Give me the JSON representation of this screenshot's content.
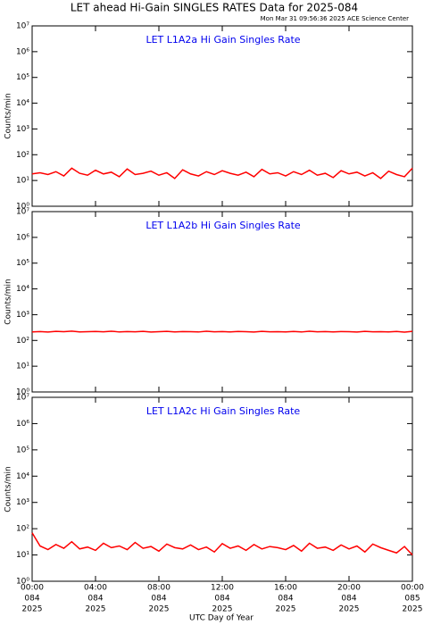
{
  "title": "LET ahead Hi-Gain SINGLES RATES Data for 2025-084",
  "subtitle": "Mon Mar 31 09:56:36 2025 ACE Science Center",
  "xlabel": "UTC Day of Year",
  "chart_data": [
    {
      "type": "line",
      "title": "LET L1A2a Hi Gain Singles Rate",
      "ylabel": "Counts/min",
      "log_y": true,
      "color": "#ff0000",
      "x": [
        0,
        0.5,
        1,
        1.5,
        2,
        2.5,
        3,
        3.5,
        4,
        4.5,
        5,
        5.5,
        6,
        6.5,
        7,
        7.5,
        8,
        8.5,
        9,
        9.5,
        10,
        10.5,
        11,
        11.5,
        12,
        12.5,
        13,
        13.5,
        14,
        14.5,
        15,
        15.5,
        16,
        16.5,
        17,
        17.5,
        18,
        18.5,
        19,
        19.5,
        20,
        20.5,
        21,
        21.5,
        22,
        22.5,
        23,
        23.5,
        24
      ],
      "values": [
        18,
        20,
        17,
        22,
        15,
        30,
        19,
        16,
        25,
        18,
        21,
        14,
        28,
        17,
        19,
        23,
        16,
        20,
        12,
        26,
        18,
        15,
        22,
        17,
        24,
        19,
        16,
        21,
        14,
        27,
        18,
        20,
        15,
        22,
        17,
        25,
        16,
        19,
        13,
        24,
        18,
        21,
        15,
        20,
        12,
        23,
        17,
        14,
        30
      ],
      "xlim": [
        0,
        24
      ],
      "xticks": [
        0,
        4,
        8,
        12,
        16,
        20,
        24
      ],
      "ylim": [
        1,
        10000000
      ],
      "yticks": [
        {
          "value": 1,
          "label": "10⁰"
        },
        {
          "value": 10,
          "label": "10¹"
        },
        {
          "value": 100,
          "label": "10²"
        },
        {
          "value": 1000,
          "label": "10³"
        },
        {
          "value": 10000,
          "label": "10⁴"
        },
        {
          "value": 100000,
          "label": "10⁵"
        },
        {
          "value": 1000000,
          "label": "10⁶"
        },
        {
          "value": 10000000,
          "label": "10⁷"
        }
      ]
    },
    {
      "type": "line",
      "title": "LET L1A2b Hi Gain Singles Rate",
      "ylabel": "Counts/min",
      "log_y": true,
      "color": "#ff0000",
      "x": [
        0,
        0.5,
        1,
        1.5,
        2,
        2.5,
        3,
        3.5,
        4,
        4.5,
        5,
        5.5,
        6,
        6.5,
        7,
        7.5,
        8,
        8.5,
        9,
        9.5,
        10,
        10.5,
        11,
        11.5,
        12,
        12.5,
        13,
        13.5,
        14,
        14.5,
        15,
        15.5,
        16,
        16.5,
        17,
        17.5,
        18,
        18.5,
        19,
        19.5,
        20,
        20.5,
        21,
        21.5,
        22,
        22.5,
        23,
        23.5,
        24
      ],
      "values": [
        215,
        220,
        212,
        225,
        218,
        230,
        214,
        219,
        222,
        216,
        228,
        213,
        220,
        217,
        224,
        212,
        219,
        226,
        215,
        221,
        218,
        213,
        227,
        216,
        220,
        214,
        223,
        218,
        211,
        225,
        217,
        219,
        215,
        222,
        213,
        228,
        216,
        220,
        214,
        221,
        218,
        212,
        224,
        217,
        219,
        215,
        222,
        210,
        225
      ],
      "xlim": [
        0,
        24
      ],
      "xticks": [
        0,
        4,
        8,
        12,
        16,
        20,
        24
      ],
      "ylim": [
        1,
        10000000
      ],
      "yticks": [
        {
          "value": 1,
          "label": "10⁰"
        },
        {
          "value": 10,
          "label": "10¹"
        },
        {
          "value": 100,
          "label": "10²"
        },
        {
          "value": 1000,
          "label": "10³"
        },
        {
          "value": 10000,
          "label": "10⁴"
        },
        {
          "value": 100000,
          "label": "10⁵"
        },
        {
          "value": 1000000,
          "label": "10⁶"
        },
        {
          "value": 10000000,
          "label": "10⁷"
        }
      ]
    },
    {
      "type": "line",
      "title": "LET L1A2c Hi Gain Singles Rate",
      "ylabel": "Counts/min",
      "log_y": true,
      "color": "#ff0000",
      "x": [
        0,
        0.5,
        1,
        1.5,
        2,
        2.5,
        3,
        3.5,
        4,
        4.5,
        5,
        5.5,
        6,
        6.5,
        7,
        7.5,
        8,
        8.5,
        9,
        9.5,
        10,
        10.5,
        11,
        11.5,
        12,
        12.5,
        13,
        13.5,
        14,
        14.5,
        15,
        15.5,
        16,
        16.5,
        17,
        17.5,
        18,
        18.5,
        19,
        19.5,
        20,
        20.5,
        21,
        21.5,
        22,
        22.5,
        23,
        23.5,
        24
      ],
      "values": [
        70,
        22,
        16,
        25,
        18,
        32,
        17,
        20,
        15,
        28,
        19,
        22,
        16,
        30,
        18,
        21,
        14,
        26,
        19,
        17,
        24,
        16,
        20,
        13,
        27,
        18,
        22,
        15,
        25,
        17,
        21,
        19,
        16,
        23,
        14,
        28,
        18,
        20,
        15,
        24,
        17,
        22,
        13,
        26,
        19,
        15,
        12,
        21,
        10
      ],
      "xlim": [
        0,
        24
      ],
      "xticks": [
        {
          "value": 0,
          "label": [
            "00:00",
            "084",
            "2025"
          ]
        },
        {
          "value": 4,
          "label": [
            "04:00",
            "084",
            "2025"
          ]
        },
        {
          "value": 8,
          "label": [
            "08:00",
            "084",
            "2025"
          ]
        },
        {
          "value": 12,
          "label": [
            "12:00",
            "084",
            "2025"
          ]
        },
        {
          "value": 16,
          "label": [
            "16:00",
            "084",
            "2025"
          ]
        },
        {
          "value": 20,
          "label": [
            "20:00",
            "084",
            "2025"
          ]
        },
        {
          "value": 24,
          "label": [
            "00:00",
            "085",
            "2025"
          ]
        }
      ],
      "ylim": [
        1,
        10000000
      ],
      "yticks": [
        {
          "value": 1,
          "label": "10⁰"
        },
        {
          "value": 10,
          "label": "10¹"
        },
        {
          "value": 100,
          "label": "10²"
        },
        {
          "value": 1000,
          "label": "10³"
        },
        {
          "value": 10000,
          "label": "10⁴"
        },
        {
          "value": 100000,
          "label": "10⁵"
        },
        {
          "value": 1000000,
          "label": "10⁶"
        },
        {
          "value": 10000000,
          "label": "10⁷"
        }
      ]
    }
  ]
}
